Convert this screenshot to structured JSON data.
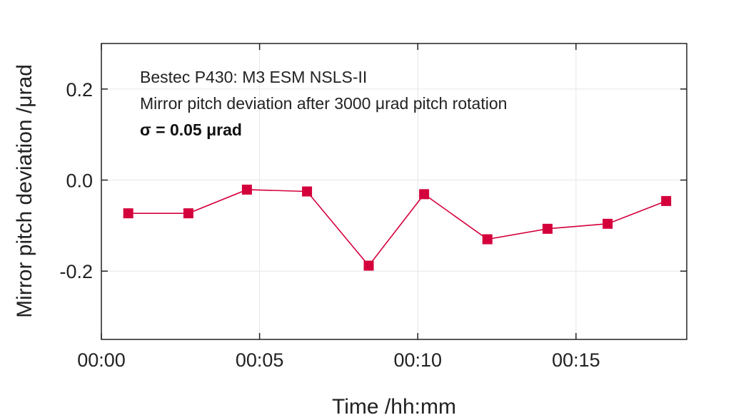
{
  "chart_data": {
    "type": "line",
    "title": "",
    "xlabel": "Time /hh:mm",
    "ylabel": "Mirror pitch deviation /μrad",
    "x_unit": "minutes",
    "xlim": [
      0,
      18.5
    ],
    "ylim": [
      -0.35,
      0.3
    ],
    "x_ticks": [
      {
        "value": 0,
        "label": "00:00"
      },
      {
        "value": 5,
        "label": "00:05"
      },
      {
        "value": 10,
        "label": "00:10"
      },
      {
        "value": 15,
        "label": "00:15"
      }
    ],
    "y_ticks": [
      {
        "value": 0.2,
        "label": "0.2"
      },
      {
        "value": 0.0,
        "label": "0.0"
      },
      {
        "value": -0.2,
        "label": "-0.2"
      }
    ],
    "grid": true,
    "series": [
      {
        "name": "Mirror pitch deviation",
        "color": "#d4003c",
        "x": [
          0.85,
          2.75,
          4.6,
          6.5,
          8.45,
          10.2,
          12.2,
          14.1,
          16.0,
          17.85
        ],
        "values": [
          -0.073,
          -0.073,
          -0.021,
          -0.025,
          -0.188,
          -0.031,
          -0.13,
          -0.107,
          -0.096,
          -0.046
        ]
      }
    ],
    "annotations": [
      "Bestec P430: M3 ESM NSLS-II",
      "Mirror pitch deviation after 3000 μrad pitch rotation",
      "σ = 0.05 μrad"
    ]
  }
}
